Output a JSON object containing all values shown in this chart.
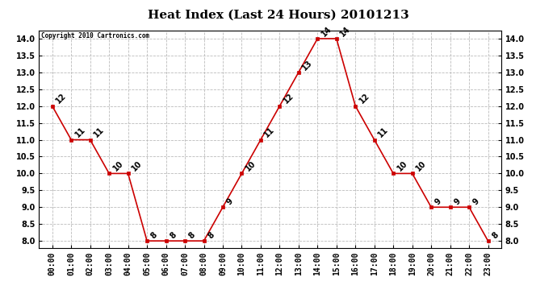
{
  "title": "Heat Index (Last 24 Hours) 20101213",
  "copyright": "Copyright 2010 Cartronics.com",
  "hours": [
    "00:00",
    "01:00",
    "02:00",
    "03:00",
    "04:00",
    "05:00",
    "06:00",
    "07:00",
    "08:00",
    "09:00",
    "10:00",
    "11:00",
    "12:00",
    "13:00",
    "14:00",
    "15:00",
    "16:00",
    "17:00",
    "18:00",
    "19:00",
    "20:00",
    "21:00",
    "22:00",
    "23:00"
  ],
  "values": [
    12,
    11,
    11,
    10,
    10,
    8,
    8,
    8,
    8,
    9,
    10,
    11,
    12,
    13,
    14,
    14,
    12,
    11,
    10,
    10,
    9,
    9,
    9,
    8
  ],
  "ylim_min": 7.8,
  "ylim_max": 14.25,
  "yticks": [
    8.0,
    8.5,
    9.0,
    9.5,
    10.0,
    10.5,
    11.0,
    11.5,
    12.0,
    12.5,
    13.0,
    13.5,
    14.0
  ],
  "line_color": "#cc0000",
  "bg_color": "#ffffff",
  "grid_color": "#bbbbbb",
  "title_fontsize": 11,
  "tick_fontsize": 7,
  "annot_fontsize": 7
}
